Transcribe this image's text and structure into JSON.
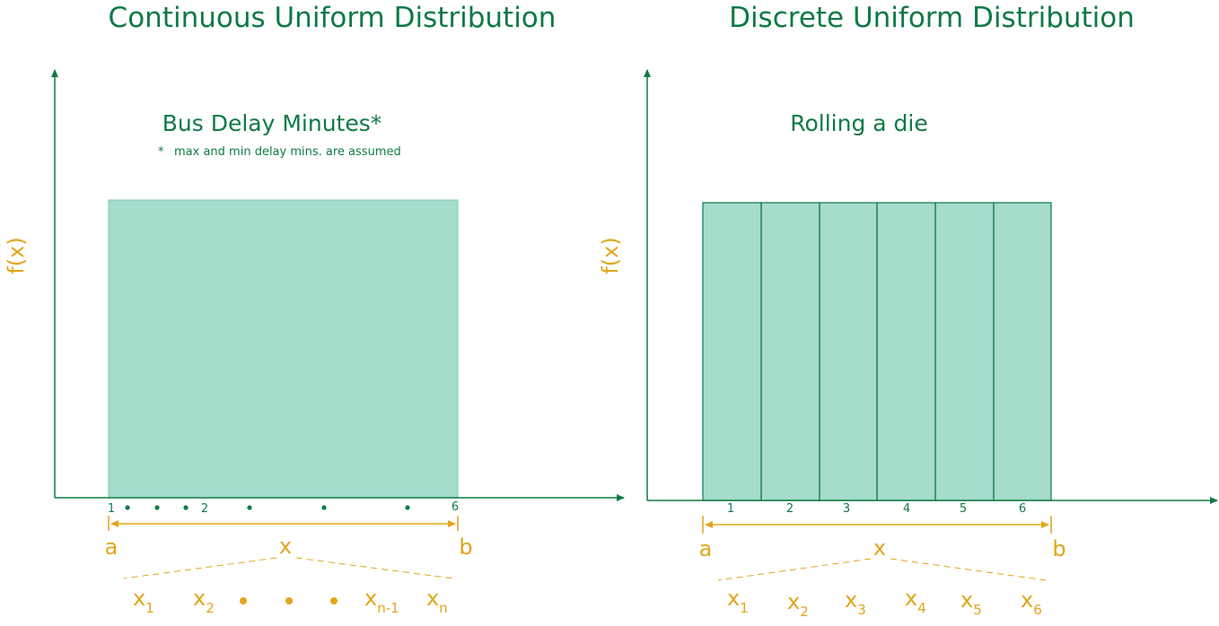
{
  "left_panel": {
    "title": "Continuous Uniform Distribution",
    "subtitle": "Bus Delay Minutes*",
    "note_star": "*",
    "note": "max and min delay mins. are assumed",
    "ylabel": "f(x)",
    "ticks": [
      "1",
      "2",
      "6"
    ],
    "range_start": "a",
    "range_end": "b",
    "range_var": "x",
    "samples": [
      {
        "base": "x",
        "sub": "1"
      },
      {
        "base": "x",
        "sub": "2"
      },
      {
        "base": "x",
        "sub": "n-1"
      },
      {
        "base": "x",
        "sub": "n"
      }
    ]
  },
  "right_panel": {
    "title": "Discrete Uniform Distribution",
    "subtitle": "Rolling a die",
    "ylabel": "f(x)",
    "ticks": [
      "1",
      "2",
      "3",
      "4",
      "5",
      "6"
    ],
    "range_start": "a",
    "range_end": "b",
    "range_var": "x",
    "samples": [
      {
        "base": "x",
        "sub": "1"
      },
      {
        "base": "x",
        "sub": "2"
      },
      {
        "base": "x",
        "sub": "3"
      },
      {
        "base": "x",
        "sub": "4"
      },
      {
        "base": "x",
        "sub": "5"
      },
      {
        "base": "x",
        "sub": "6"
      }
    ]
  },
  "colors": {
    "accent_green": "#0e7a45",
    "fill_green": "#a5dccc",
    "gold": "#e1a51a"
  }
}
